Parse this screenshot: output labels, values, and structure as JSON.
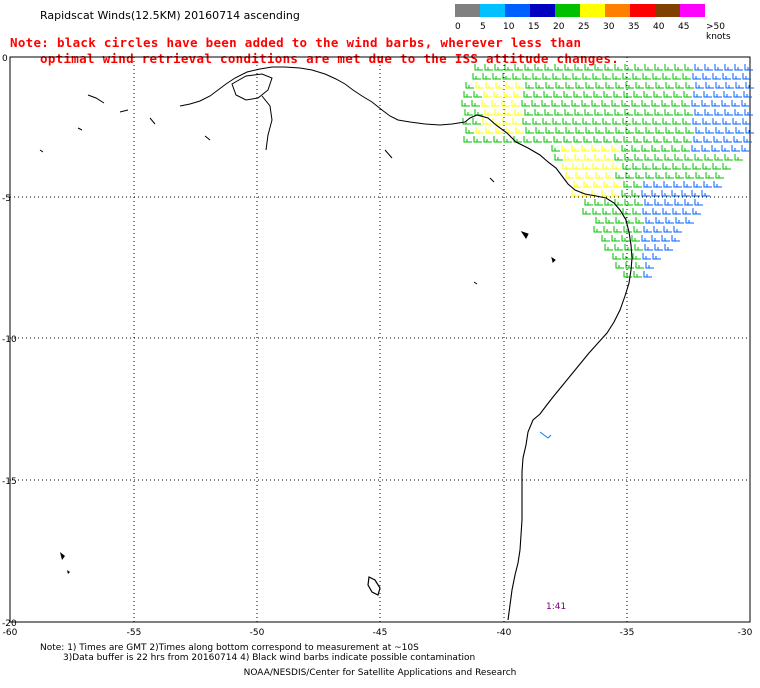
{
  "title": "Rapidscat Winds(12.5KM) 20160714 ascending",
  "note_line1": "Note: black circles have been added to the wind barbs, wherever less than",
  "note_line2": "optimal wind retrieval conditions are met due to the ISS attitude changes.",
  "legend": {
    "labels": [
      "0",
      "5",
      "10",
      "15",
      "20",
      "25",
      "30",
      "35",
      "40",
      "45",
      ">50 knots"
    ],
    "colors": [
      "#808080",
      "#00c0ff",
      "#0060ff",
      "#0000c0",
      "#00c000",
      "#ffff00",
      "#ff8000",
      "#ff0000",
      "#804000",
      "#ff00ff",
      "#400080"
    ]
  },
  "axes": {
    "lat_ticks": [
      "0",
      "-5",
      "-10",
      "-15",
      "-20"
    ],
    "lon_ticks": [
      "-60",
      "-55",
      "-50",
      "-45",
      "-40",
      "-35",
      "-30"
    ]
  },
  "time_label": "1:41",
  "footer_line1": "Note: 1) Times are GMT 2)Times along bottom correspond to measurement at ~10S",
  "footer_line2": "3)Data buffer is 22 hrs from 20160714 4) Black wind barbs indicate possible contamination",
  "footer_line3": "NOAA/NESDIS/Center for Satellite Applications and Research"
}
